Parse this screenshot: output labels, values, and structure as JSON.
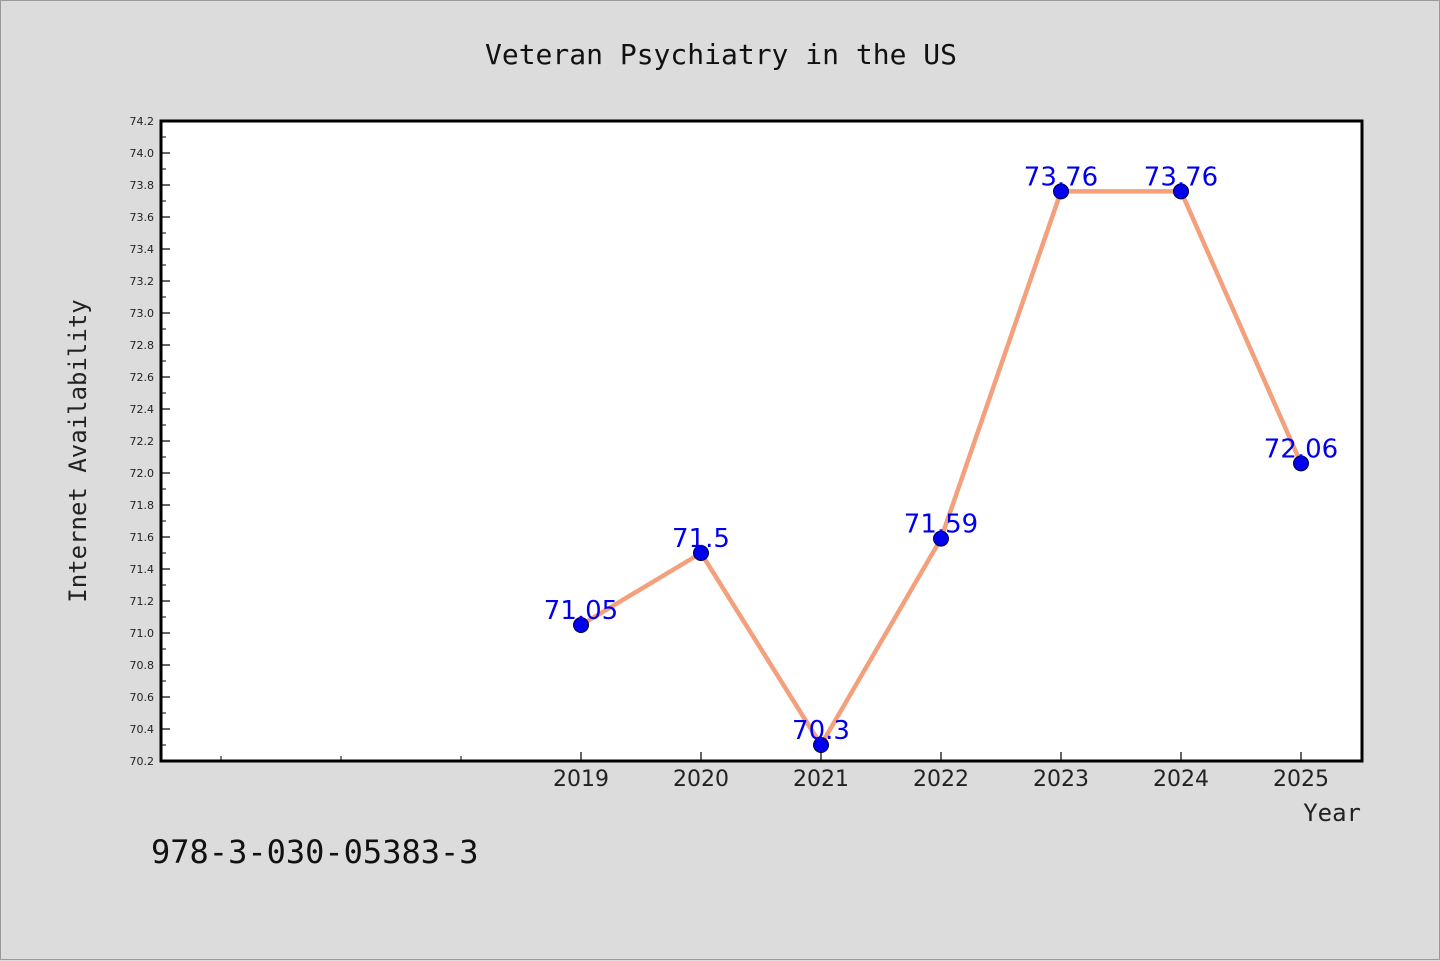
{
  "chart_data": {
    "type": "line",
    "title": "Veteran Psychiatry in the US",
    "xlabel": "Year",
    "ylabel": "Internet Availability",
    "categories": [
      "2019",
      "2020",
      "2021",
      "2022",
      "2023",
      "2024",
      "2025"
    ],
    "series": [
      {
        "values": [
          71.05,
          71.5,
          70.3,
          71.59,
          73.76,
          73.76,
          72.06
        ],
        "data_labels": [
          "71.05",
          "71.5",
          "70.3",
          "71.59",
          "73.76",
          "73.76",
          "72.06"
        ]
      }
    ],
    "ylim": [
      70.2,
      74.2
    ],
    "yticks": [
      "70.2",
      "70.4",
      "70.6",
      "70.8",
      "71.0",
      "71.2",
      "71.4",
      "71.6",
      "71.8",
      "72.0",
      "72.2",
      "72.4",
      "72.6",
      "72.8",
      "73.0",
      "73.2",
      "73.4",
      "73.6",
      "73.8",
      "74.0",
      "74.2"
    ],
    "line_color": "#f4a07c",
    "marker_color": "#0000ee",
    "label_color": "#0000ee",
    "grid": false,
    "legend": "none"
  },
  "footer": {
    "code": "978-3-030-05383-3"
  }
}
